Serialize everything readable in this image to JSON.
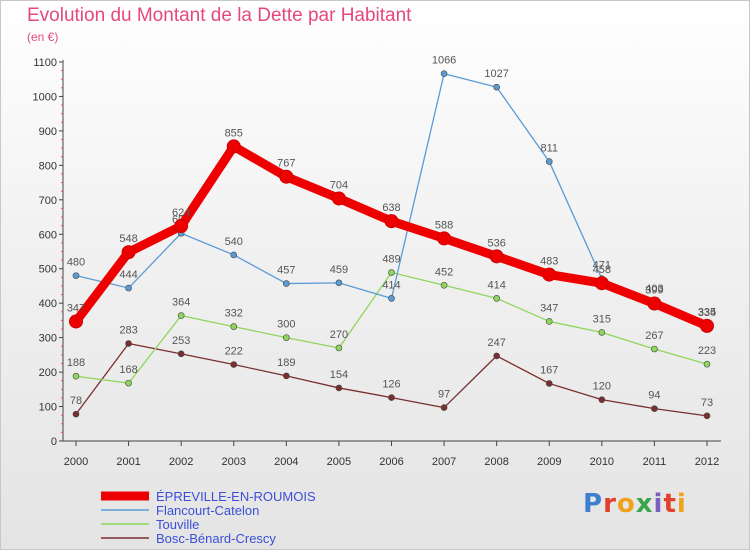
{
  "header": {
    "title": "Evolution du Montant de la Dette par Habitant",
    "unit": "(en €)"
  },
  "logo": {
    "text": "Proxiti"
  },
  "chart_data": {
    "type": "line",
    "x": [
      "2000",
      "2001",
      "2002",
      "2003",
      "2004",
      "2005",
      "2006",
      "2007",
      "2008",
      "2009",
      "2010",
      "2011",
      "2012"
    ],
    "ylim": [
      0,
      1100
    ],
    "yticks": [
      0,
      100,
      200,
      300,
      400,
      500,
      600,
      700,
      800,
      900,
      1000,
      1100
    ],
    "grid": false,
    "legend_position": "bottom-left",
    "series": [
      {
        "name": "ÉPREVILLE-EN-ROUMOIS",
        "color": "#ee0000",
        "emphasis": true,
        "values": [
          347,
          548,
          624,
          855,
          767,
          704,
          638,
          588,
          536,
          483,
          458,
          399,
          334
        ],
        "labels": [
          "347",
          "548",
          "624",
          "855",
          "767",
          "704",
          "638",
          "588",
          "536",
          "483",
          "458",
          "399",
          "334"
        ]
      },
      {
        "name": "Flancourt-Catelon",
        "color": "#5b9bd5",
        "values": [
          480,
          444,
          603,
          540,
          457,
          459,
          414,
          1066,
          1027,
          811,
          471,
          403,
          335
        ],
        "labels": [
          "480",
          "444",
          "603",
          "540",
          "457",
          "459",
          "414",
          "1066",
          "1027",
          "811",
          "471",
          "403",
          "335"
        ]
      },
      {
        "name": "Touville",
        "color": "#8fd65c",
        "values": [
          188,
          168,
          364,
          332,
          300,
          270,
          489,
          452,
          414,
          347,
          315,
          267,
          223
        ],
        "labels": [
          "188",
          "168",
          "364",
          "332",
          "300",
          "270",
          "489",
          "452",
          "414",
          "347",
          "315",
          "267",
          "223"
        ]
      },
      {
        "name": "Bosc-Bénard-Crescy",
        "color": "#7a2f2f",
        "values": [
          78,
          283,
          253,
          222,
          189,
          154,
          126,
          97,
          247,
          167,
          120,
          94,
          73
        ],
        "labels": [
          "78",
          "283",
          "253",
          "222",
          "189",
          "154",
          "126",
          "97",
          "247",
          "167",
          "120",
          "94",
          "73"
        ]
      }
    ]
  }
}
